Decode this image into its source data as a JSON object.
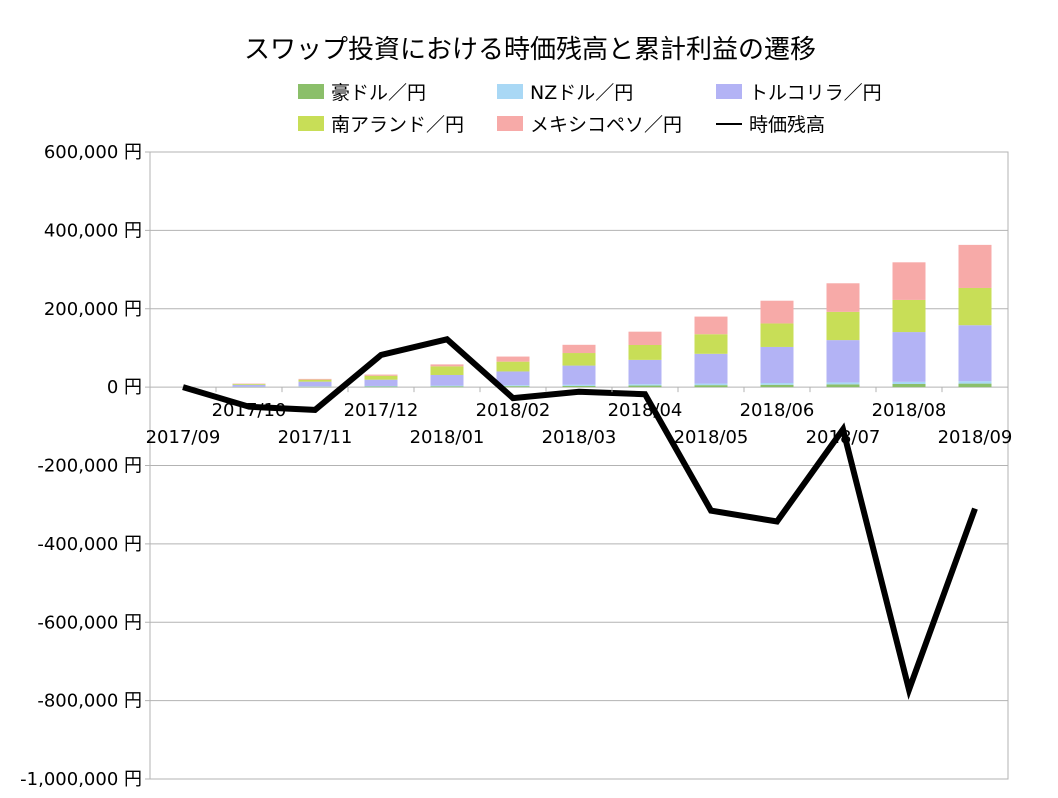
{
  "chart_data": {
    "type": "bar",
    "title": "スワップ投資における時価残高と累計利益の遷移",
    "xlabel": "",
    "ylabel": "",
    "ylim": [
      -1000000,
      600000
    ],
    "yticks": [
      600000,
      400000,
      200000,
      0,
      -200000,
      -400000,
      -600000,
      -800000,
      -1000000
    ],
    "ytick_labels": [
      "600,000 円",
      "400,000 円",
      "200,000 円",
      "0 円",
      "-200,000 円",
      "-400,000 円",
      "-600,000 円",
      "-800,000 円",
      "-1,000,000 円"
    ],
    "categories": [
      "2017/09",
      "2017/10",
      "2017/11",
      "2017/12",
      "2018/01",
      "2018/02",
      "2018/03",
      "2018/04",
      "2018/05",
      "2018/06",
      "2018/07",
      "2018/08",
      "2018/09"
    ],
    "grid": true,
    "legend_position": "top",
    "stacked": true,
    "series": [
      {
        "name": "豪ドル／円",
        "kind": "bar",
        "color": "#8bbf6a",
        "values": [
          0,
          500,
          1000,
          1500,
          2000,
          2500,
          3000,
          4000,
          5000,
          6000,
          7000,
          8000,
          9000
        ]
      },
      {
        "name": "NZドル／円",
        "kind": "bar",
        "color": "#a9d8f5",
        "values": [
          0,
          500,
          1000,
          1500,
          2000,
          2500,
          3000,
          3500,
          4000,
          4500,
          5000,
          5500,
          6000
        ]
      },
      {
        "name": "トルコリラ／円",
        "kind": "bar",
        "color": "#b3b3f5",
        "values": [
          0,
          5000,
          12000,
          16000,
          27000,
          35000,
          49000,
          62000,
          76000,
          92000,
          108000,
          127000,
          143000
        ]
      },
      {
        "name": "南アランド／円",
        "kind": "bar",
        "color": "#c8de57",
        "values": [
          0,
          2000,
          5000,
          10000,
          22000,
          25000,
          32000,
          38000,
          50000,
          60000,
          72000,
          82000,
          95000
        ]
      },
      {
        "name": "メキシコペソ／円",
        "kind": "bar",
        "color": "#f7aaa8",
        "values": [
          0,
          1000,
          2000,
          3000,
          5000,
          13000,
          21000,
          34000,
          45000,
          58000,
          73000,
          96000,
          110000
        ]
      },
      {
        "name": "時価残高",
        "kind": "line",
        "color": "#000000",
        "values": [
          0,
          -50000,
          -58000,
          82000,
          122000,
          -28000,
          -12000,
          -18000,
          -315000,
          -343000,
          -108000,
          -772000,
          -310000
        ]
      }
    ]
  }
}
